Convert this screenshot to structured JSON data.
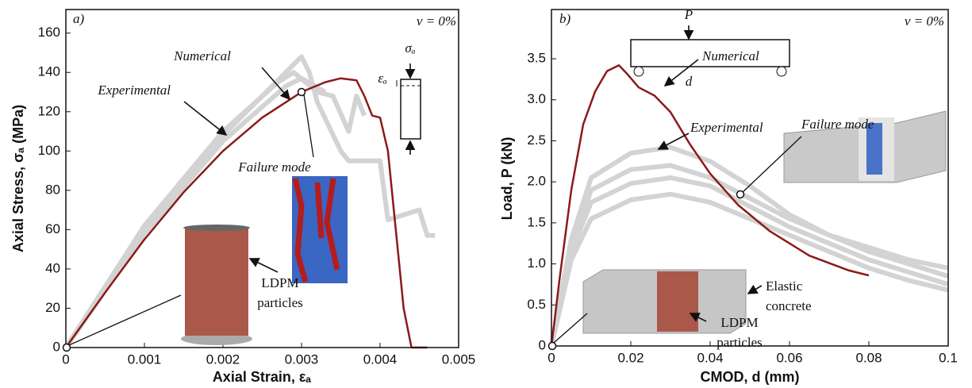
{
  "chart_data": [
    {
      "type": "line",
      "x_label": "Axial Strain, εₐ",
      "y_label": "Axial Stress, σₐ (MPa)",
      "xlim": [
        0,
        0.005
      ],
      "xticks": [
        0,
        0.001,
        0.002,
        0.003,
        0.004,
        0.005
      ],
      "ylim": [
        0,
        172
      ],
      "yticks": [
        0,
        20,
        40,
        60,
        80,
        100,
        120,
        140,
        160
      ],
      "series": [
        {
          "color": "#d3d3d3",
          "x": [
            0,
            0.001,
            0.002,
            0.0025,
            0.003,
            0.0031,
            0.0032,
            0.0035,
            0.0036,
            0.004,
            0.0041,
            0.0045,
            0.0046,
            0.0047
          ],
          "values": [
            0,
            60,
            108,
            128,
            148,
            140,
            125,
            100,
            95,
            95,
            65,
            70,
            57,
            57
          ]
        },
        {
          "color": "#d3d3d3",
          "x": [
            0,
            0.001,
            0.002,
            0.0027,
            0.0029,
            0.0032,
            0.0034,
            0.0036,
            0.0037,
            0.0038
          ],
          "values": [
            0,
            62,
            110,
            135,
            140,
            130,
            128,
            110,
            128,
            118
          ]
        },
        {
          "color": "#d3d3d3",
          "x": [
            0,
            0.001,
            0.002,
            0.0028,
            0.003,
            0.0033
          ],
          "values": [
            0,
            58,
            105,
            133,
            137,
            130
          ]
        },
        {
          "color": "#8b1a1a",
          "x": [
            0,
            0.0005,
            0.001,
            0.0015,
            0.002,
            0.0025,
            0.003,
            0.0033,
            0.0035,
            0.0037,
            0.0038,
            0.0039,
            0.004,
            0.0041,
            0.0042,
            0.0043,
            0.0044,
            0.0046
          ],
          "values": [
            0,
            28,
            55,
            79,
            100,
            117,
            130,
            135,
            137,
            136,
            128,
            118,
            117,
            100,
            60,
            20,
            0,
            0
          ]
        }
      ],
      "annotations": [
        {
          "text": "a)"
        },
        {
          "text": "ν = 0%"
        },
        {
          "text": "Numerical"
        },
        {
          "text": "Experimental"
        },
        {
          "text": "Failure mode"
        },
        {
          "lines": [
            "LDPM",
            "particles"
          ]
        },
        {
          "text": "σₐ"
        },
        {
          "text": "εₐ"
        }
      ]
    },
    {
      "type": "line",
      "x_label": "CMOD, d (mm)",
      "y_label": "Load, P (kN)",
      "xlim": [
        0,
        0.1
      ],
      "xticks": [
        0,
        0.02,
        0.04,
        0.06,
        0.08,
        0.1
      ],
      "ylim": [
        0,
        4.1
      ],
      "yticks": [
        0,
        0.5,
        {
          "value": 1,
          "label": "1.0"
        },
        1.5,
        {
          "value": 2,
          "label": "2.0"
        },
        2.5,
        {
          "value": 3,
          "label": "3.0"
        },
        3.5
      ],
      "series": [
        {
          "color": "#d3d3d3",
          "x": [
            0,
            0.005,
            0.01,
            0.02,
            0.03,
            0.04,
            0.05,
            0.06,
            0.07,
            0.08,
            0.09,
            0.1
          ],
          "values": [
            0,
            1.3,
            2.05,
            2.35,
            2.42,
            2.25,
            1.95,
            1.6,
            1.35,
            1.15,
            1.0,
            0.85
          ]
        },
        {
          "color": "#d3d3d3",
          "x": [
            0,
            0.005,
            0.01,
            0.02,
            0.03,
            0.04,
            0.05,
            0.06,
            0.07,
            0.08,
            0.09,
            0.1
          ],
          "values": [
            0,
            1.2,
            1.9,
            2.15,
            2.2,
            2.05,
            1.8,
            1.55,
            1.35,
            1.2,
            1.05,
            0.95
          ]
        },
        {
          "color": "#d3d3d3",
          "x": [
            0,
            0.005,
            0.01,
            0.02,
            0.03,
            0.04,
            0.05,
            0.06,
            0.07,
            0.08,
            0.09,
            0.1
          ],
          "values": [
            0,
            1.15,
            1.75,
            1.98,
            2.05,
            1.95,
            1.7,
            1.45,
            1.25,
            1.05,
            0.9,
            0.75
          ]
        },
        {
          "color": "#d3d3d3",
          "x": [
            0,
            0.005,
            0.01,
            0.02,
            0.03,
            0.04,
            0.05,
            0.06,
            0.07,
            0.08,
            0.09,
            0.1
          ],
          "values": [
            0,
            1.05,
            1.55,
            1.78,
            1.85,
            1.75,
            1.55,
            1.35,
            1.15,
            0.95,
            0.8,
            0.68
          ]
        },
        {
          "color": "#8b1a1a",
          "x": [
            0,
            0.002,
            0.005,
            0.008,
            0.011,
            0.014,
            0.017,
            0.019,
            0.022,
            0.026,
            0.03,
            0.035,
            0.04,
            0.047,
            0.055,
            0.065,
            0.075,
            0.08
          ],
          "values": [
            0,
            0.8,
            1.9,
            2.7,
            3.1,
            3.35,
            3.42,
            3.32,
            3.15,
            3.05,
            2.85,
            2.45,
            2.1,
            1.72,
            1.4,
            1.1,
            0.92,
            0.86
          ]
        }
      ],
      "annotations": [
        {
          "text": "b)"
        },
        {
          "text": "ν = 0%"
        },
        {
          "text": "P"
        },
        {
          "text": "d"
        },
        {
          "text": "Numerical"
        },
        {
          "text": "Experimental"
        },
        {
          "text": "Failure mode"
        },
        {
          "lines": [
            "Elastic",
            "concrete"
          ]
        },
        {
          "lines": [
            "LDPM",
            "particles"
          ]
        }
      ]
    }
  ]
}
